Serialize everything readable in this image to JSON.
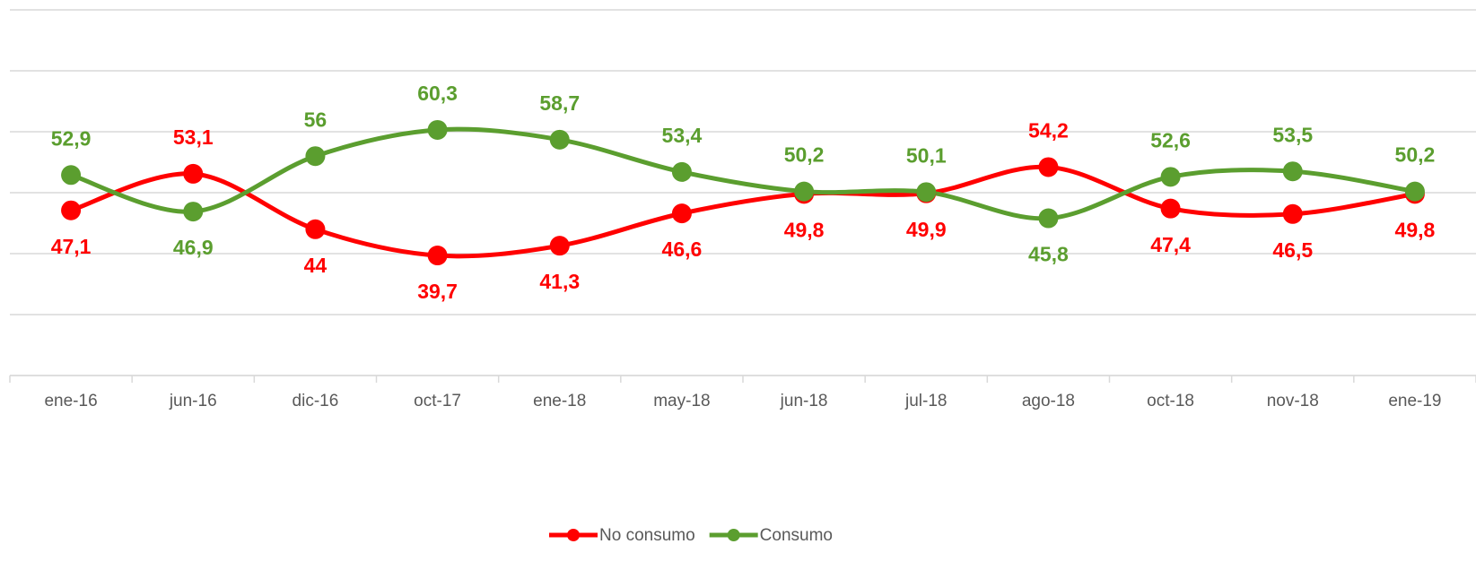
{
  "chart_data": {
    "type": "line",
    "categories": [
      "ene-16",
      "jun-16",
      "dic-16",
      "oct-17",
      "ene-18",
      "may-18",
      "jun-18",
      "jul-18",
      "ago-18",
      "oct-18",
      "nov-18",
      "ene-19"
    ],
    "series": [
      {
        "name": "No consumo",
        "color": "#ff0000",
        "values": [
          47.1,
          53.1,
          44,
          39.7,
          41.3,
          46.6,
          49.8,
          49.9,
          54.2,
          47.4,
          46.5,
          49.8
        ],
        "value_labels": [
          "47,1",
          "53,1",
          "44",
          "39,7",
          "41,3",
          "46,6",
          "49,8",
          "49,9",
          "54,2",
          "47,4",
          "46,5",
          "49,8"
        ]
      },
      {
        "name": "Consumo",
        "color": "#5b9e2f",
        "values": [
          52.9,
          46.9,
          56,
          60.3,
          58.7,
          53.4,
          50.2,
          50.1,
          45.8,
          52.6,
          53.5,
          50.2
        ],
        "value_labels": [
          "52,9",
          "46,9",
          "56",
          "60,3",
          "58,7",
          "53,4",
          "50,2",
          "50,1",
          "45,8",
          "52,6",
          "53,5",
          "50,2"
        ]
      }
    ],
    "ylim": [
      20,
      80
    ],
    "yticks": [
      20,
      30,
      40,
      50,
      60,
      70,
      80
    ],
    "grid": true,
    "legend": "bottom"
  }
}
